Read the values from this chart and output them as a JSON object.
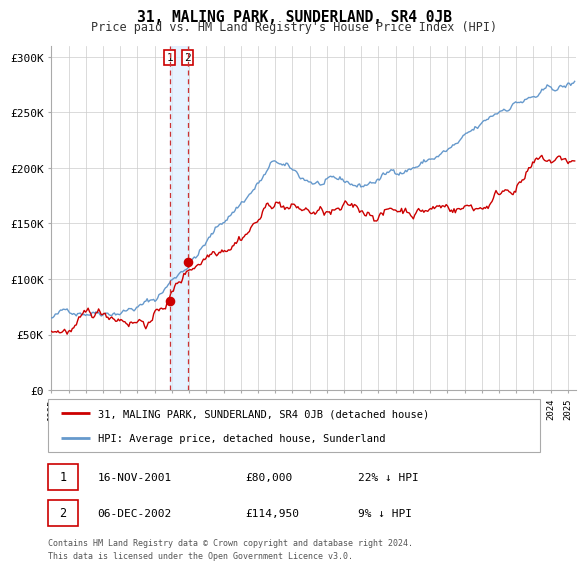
{
  "title": "31, MALING PARK, SUNDERLAND, SR4 0JB",
  "subtitle": "Price paid vs. HM Land Registry's House Price Index (HPI)",
  "legend_label_red": "31, MALING PARK, SUNDERLAND, SR4 0JB (detached house)",
  "legend_label_blue": "HPI: Average price, detached house, Sunderland",
  "transaction1_date": "16-NOV-2001",
  "transaction1_price": "£80,000",
  "transaction1_hpi": "22% ↓ HPI",
  "transaction1_year": 2001.88,
  "transaction1_value": 80000,
  "transaction2_date": "06-DEC-2002",
  "transaction2_price": "£114,950",
  "transaction2_hpi": "9% ↓ HPI",
  "transaction2_year": 2002.92,
  "transaction2_value": 114950,
  "vline1_year": 2001.88,
  "vline2_year": 2002.92,
  "shade_start": 2001.88,
  "shade_end": 2002.92,
  "ylim_min": 0,
  "ylim_max": 310000,
  "xlim_min": 1995,
  "xlim_max": 2025.5,
  "ytick_values": [
    0,
    50000,
    100000,
    150000,
    200000,
    250000,
    300000
  ],
  "ytick_labels": [
    "£0",
    "£50K",
    "£100K",
    "£150K",
    "£200K",
    "£250K",
    "£300K"
  ],
  "color_red": "#cc0000",
  "color_blue": "#6699cc",
  "color_shade": "#ddeeff",
  "color_vline": "#cc3333",
  "footer_text": "Contains HM Land Registry data © Crown copyright and database right 2024.\nThis data is licensed under the Open Government Licence v3.0.",
  "background_color": "#ffffff",
  "grid_color": "#cccccc"
}
